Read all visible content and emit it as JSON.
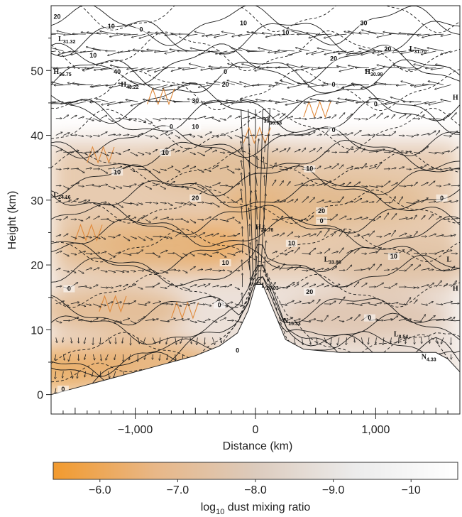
{
  "chart_data": {
    "type": "heatmap",
    "description_kind": "cross-section with dust mixing ratio shading, temperature-anomaly contours and wind vectors",
    "xlabel": "Distance (km)",
    "ylabel": "Height (km)",
    "xlim": [
      -1700,
      1700
    ],
    "ylim": [
      -3,
      60
    ],
    "x_ticks": [
      -1000,
      0,
      1000
    ],
    "x_tick_labels": [
      "−1,000",
      "0",
      "1,000"
    ],
    "y_ticks": [
      0,
      10,
      20,
      30,
      40,
      50
    ],
    "y_tick_labels": [
      "0",
      "10",
      "20",
      "30",
      "40",
      "50"
    ],
    "colorbar": {
      "label_prefix": "log",
      "label_sub": "10",
      "label_rest": " dust mixing ratio",
      "ticks": [
        -6.0,
        -7.0,
        -8.0,
        -9.0,
        -10
      ],
      "tick_labels": [
        "−6.0",
        "−7.0",
        "−8.0",
        "−9.0",
        "−10"
      ],
      "range": [
        -5.4,
        -10.6
      ],
      "color_high": "#f29a2e",
      "color_low": "#ffffff"
    },
    "terrain": {
      "x": [
        -1700,
        -1400,
        -1100,
        -800,
        -500,
        -300,
        -150,
        -60,
        0,
        60,
        150,
        250,
        400,
        700,
        1000,
        1300,
        1500,
        1600,
        1700
      ],
      "y": [
        0,
        1.5,
        3,
        4.5,
        6,
        7.5,
        9.5,
        13,
        17,
        17,
        13,
        8.5,
        7,
        6.5,
        6.5,
        6.5,
        6.5,
        5.5,
        3.5
      ]
    },
    "dust_blobs": [
      {
        "x": -620,
        "y": 23,
        "log_value": -6.2
      },
      {
        "x": -1000,
        "y": 23,
        "log_value": -7.0
      },
      {
        "x": 300,
        "y": 29,
        "log_value": -6.8
      },
      {
        "x": 800,
        "y": 30,
        "log_value": -7.3
      },
      {
        "x": -300,
        "y": 35,
        "log_value": -7.4
      },
      {
        "x": -1600,
        "y": 4,
        "log_value": -6.3
      },
      {
        "x": -900,
        "y": 5,
        "log_value": -6.7
      },
      {
        "x": 900,
        "y": 12,
        "log_value": -7.8
      },
      {
        "x": 1200,
        "y": 20,
        "log_value": -7.6
      },
      {
        "x": -1200,
        "y": 13,
        "log_value": -7.2
      }
    ],
    "contour_labels": [
      {
        "x": -1650,
        "y": 58,
        "text": "20"
      },
      {
        "x": -1200,
        "y": 56.5,
        "text": "10"
      },
      {
        "x": -950,
        "y": 56,
        "text": "0"
      },
      {
        "x": -100,
        "y": 57,
        "text": "10"
      },
      {
        "x": 250,
        "y": 55.5,
        "text": "10"
      },
      {
        "x": 900,
        "y": 57,
        "text": "30"
      },
      {
        "x": 1100,
        "y": 53,
        "text": "20"
      },
      {
        "x": -1350,
        "y": 52,
        "text": "10"
      },
      {
        "x": -1150,
        "y": 49.5,
        "text": "40"
      },
      {
        "x": -250,
        "y": 49.5,
        "text": "0"
      },
      {
        "x": -250,
        "y": 47.5,
        "text": "20"
      },
      {
        "x": -500,
        "y": 45,
        "text": "30"
      },
      {
        "x": -700,
        "y": 41,
        "text": "0"
      },
      {
        "x": -500,
        "y": 41,
        "text": "10"
      },
      {
        "x": 650,
        "y": 51.5,
        "text": "20"
      },
      {
        "x": -750,
        "y": 37,
        "text": "10"
      },
      {
        "x": -1150,
        "y": 34,
        "text": "10"
      },
      {
        "x": -500,
        "y": 30,
        "text": "20"
      },
      {
        "x": 450,
        "y": 34.5,
        "text": "10"
      },
      {
        "x": 550,
        "y": 28,
        "text": "20"
      },
      {
        "x": 550,
        "y": 26.5,
        "text": "0"
      },
      {
        "x": 300,
        "y": 23,
        "text": "10"
      },
      {
        "x": 1150,
        "y": 21,
        "text": "10"
      },
      {
        "x": -250,
        "y": 20,
        "text": "10"
      },
      {
        "x": -1550,
        "y": 16,
        "text": "0"
      },
      {
        "x": -300,
        "y": 13.5,
        "text": "0"
      },
      {
        "x": 450,
        "y": 15.5,
        "text": "20"
      },
      {
        "x": 950,
        "y": 11.5,
        "text": "0"
      },
      {
        "x": 1550,
        "y": 30,
        "text": "0"
      },
      {
        "x": -1600,
        "y": 0.5,
        "text": "0"
      },
      {
        "x": -150,
        "y": 6.5,
        "text": "0"
      },
      {
        "x": 650,
        "y": 47.5,
        "text": "0"
      },
      {
        "x": 1000,
        "y": 44.5,
        "text": "0"
      },
      {
        "x": 650,
        "y": 40.5,
        "text": "0"
      }
    ],
    "extrema": [
      {
        "x": -1640,
        "y": 54.5,
        "kind": "L",
        "value": "31.32"
      },
      {
        "x": 1280,
        "y": 53,
        "kind": "L",
        "value": "31.70"
      },
      {
        "x": -1680,
        "y": 49.5,
        "kind": "H",
        "value": "36.75"
      },
      {
        "x": -1120,
        "y": 47.5,
        "kind": "H",
        "value": "43.22"
      },
      {
        "x": 910,
        "y": 49.5,
        "kind": "H",
        "value": "30.98"
      },
      {
        "x": 70,
        "y": 42,
        "kind": "H",
        "value": "30.58"
      },
      {
        "x": 1640,
        "y": 45.5,
        "kind": "H",
        "value": ""
      },
      {
        "x": -1680,
        "y": 30.5,
        "kind": "L",
        "value": "24.16"
      },
      {
        "x": 0,
        "y": 25.5,
        "kind": "H",
        "value": "24.76"
      },
      {
        "x": 570,
        "y": 20.5,
        "kind": "L",
        "value": "33.86"
      },
      {
        "x": 50,
        "y": 16.5,
        "kind": "L",
        "value": "20.03"
      },
      {
        "x": 1590,
        "y": 20.5,
        "kind": "L",
        "value": ""
      },
      {
        "x": 1640,
        "y": 16,
        "kind": "H",
        "value": ""
      },
      {
        "x": 230,
        "y": 11,
        "kind": "N",
        "value": "15.33"
      },
      {
        "x": 1150,
        "y": 9,
        "kind": "L",
        "value": "8.54"
      },
      {
        "x": 1380,
        "y": 5.5,
        "kind": "N",
        "value": "4.33"
      }
    ],
    "grid": false,
    "legend": "colorbar-bottom"
  }
}
